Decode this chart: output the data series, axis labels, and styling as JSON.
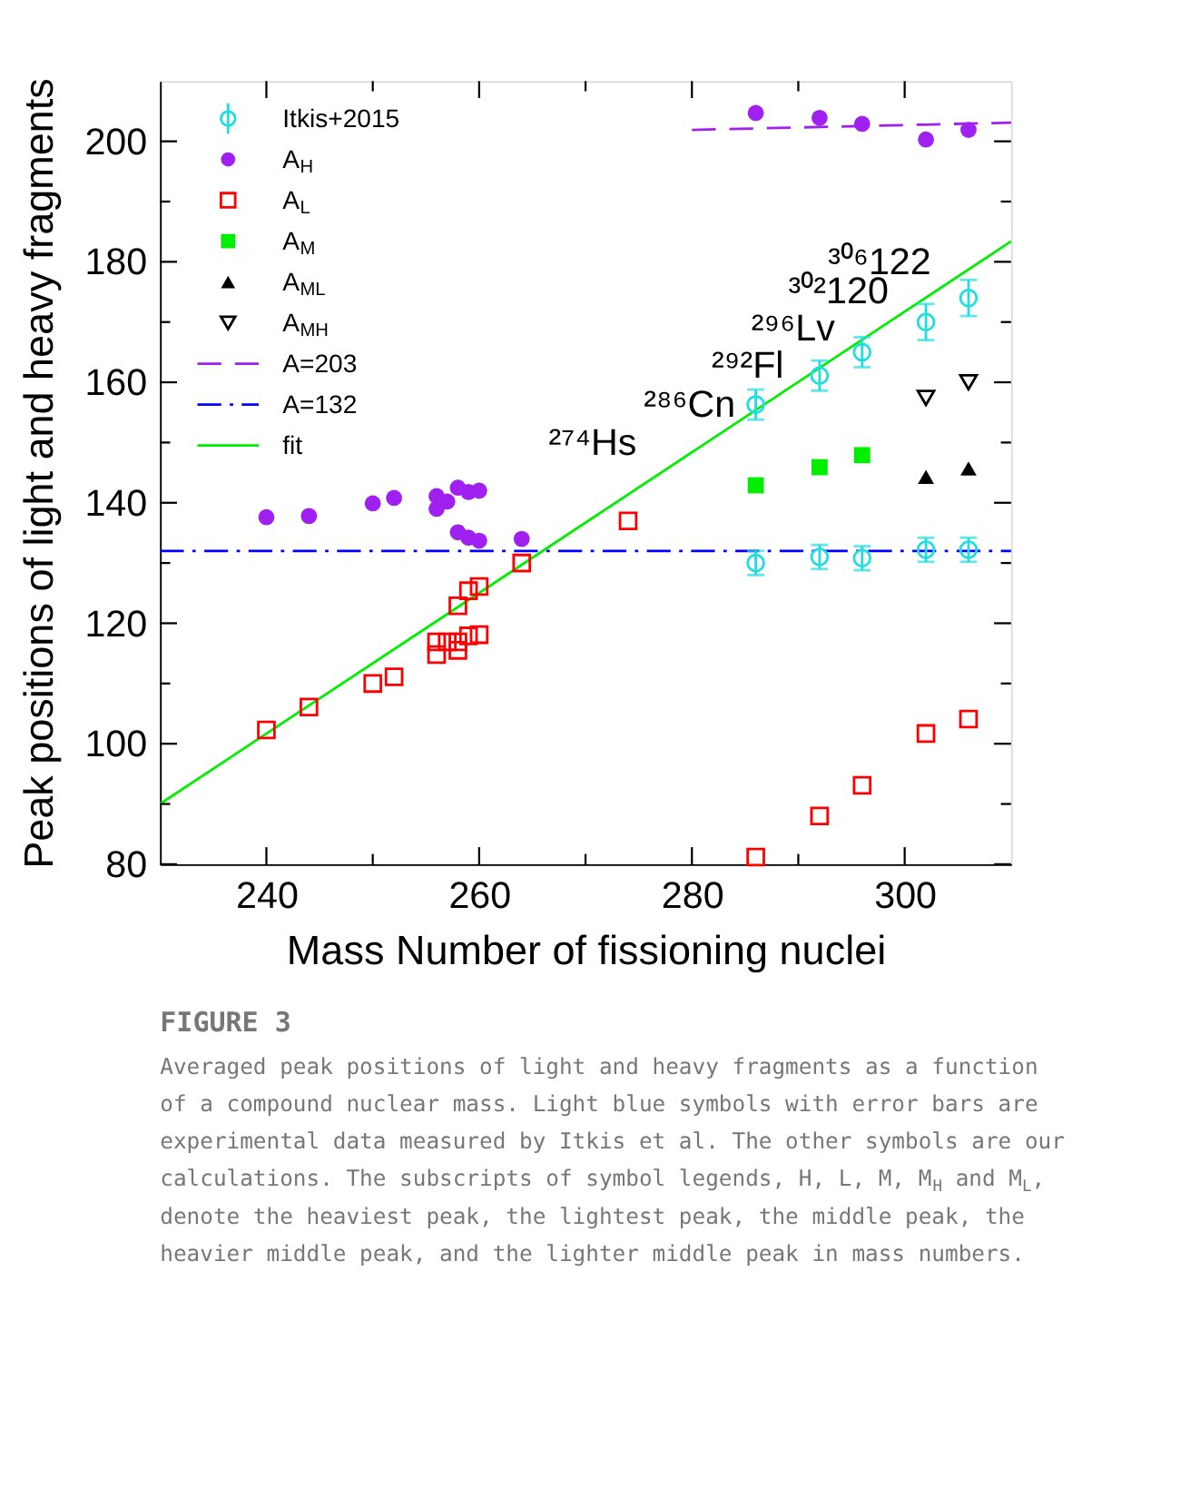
{
  "chart_data": {
    "type": "scatter",
    "xlabel": "Mass Number of fissioning nuclei",
    "ylabel": "Peak positions of light and heavy fragments",
    "xlim": [
      230,
      310
    ],
    "ylim": [
      80,
      210
    ],
    "xticks": [
      240,
      {
        "value": 250,
        "label": null
      },
      260,
      {
        "value": 270,
        "label": null
      },
      280,
      {
        "value": 290,
        "label": null
      },
      300
    ],
    "yticks": [
      80,
      {
        "value": 90,
        "label": null
      },
      100,
      {
        "value": 110,
        "label": null
      },
      120,
      {
        "value": 130,
        "label": null
      },
      140,
      {
        "value": 150,
        "label": null
      },
      160,
      {
        "value": 170,
        "label": null
      },
      180,
      {
        "value": 190,
        "label": null
      },
      200
    ],
    "grid": false,
    "legend": "top left",
    "series": [
      {
        "name": "Itkis+2015",
        "marker": "circle",
        "color": "#22dde0",
        "x": [
          286,
          292,
          296,
          302,
          306,
          286,
          292,
          296,
          302,
          306
        ],
        "values": [
          156.3,
          161.1,
          165.0,
          170.0,
          174.0,
          130.0,
          131.0,
          130.8,
          132.2,
          132.2
        ],
        "errors": [
          2.5,
          2.5,
          2.5,
          3,
          3,
          2,
          2,
          2,
          2,
          2
        ]
      },
      {
        "name": "A$_{H}$",
        "marker": "circle",
        "color": "#a020f0",
        "x": [
          240,
          244,
          250,
          252,
          256,
          256,
          257,
          258,
          259,
          260,
          258,
          259,
          260,
          264,
          286,
          292,
          296,
          302,
          306
        ],
        "values": [
          137.6,
          137.8,
          139.9,
          140.8,
          141.1,
          139.0,
          140.2,
          142.5,
          141.8,
          142.0,
          135.1,
          134.2,
          133.7,
          134.0,
          204.7,
          203.9,
          202.9,
          200.3,
          201.9
        ]
      },
      {
        "name": "A$_{L}$",
        "marker": "square",
        "color": "#ff0000",
        "x": [
          240,
          244,
          250,
          252,
          256,
          256,
          257,
          258,
          258,
          258,
          259,
          259,
          260,
          260,
          264,
          274,
          286,
          292,
          296,
          302,
          306
        ],
        "values": [
          102.3,
          106.1,
          110.0,
          111.1,
          114.8,
          116.9,
          116.9,
          116.9,
          115.5,
          122.9,
          117.9,
          125.4,
          118.1,
          126.1,
          130.0,
          137.0,
          81.2,
          88.0,
          93.1,
          101.7,
          104.1
        ]
      },
      {
        "name": "A$_{M}$",
        "marker": "square",
        "color": "#00ee00",
        "x": [
          286,
          292,
          296
        ],
        "values": [
          142.9,
          145.9,
          147.9
        ]
      },
      {
        "name": "A$_{ML}$",
        "marker": "triangle",
        "color": "#000000",
        "x": [
          302,
          306
        ],
        "values": [
          144.3,
          145.7
        ]
      },
      {
        "name": "A$_{MH}$",
        "marker": "triangle-down",
        "color": "#000000",
        "x": [
          302,
          306
        ],
        "values": [
          157.4,
          160.0
        ]
      },
      {
        "name": "A=203",
        "type": "line",
        "line_style": "dashed",
        "color": "#a020f0",
        "x": [
          280,
          310
        ],
        "values": [
          201.9,
          203.1
        ]
      },
      {
        "name": "A=132",
        "type": "line",
        "line_style": "dashdot",
        "color": "#0000ff",
        "x": [
          230,
          310
        ],
        "values": [
          132.0,
          132.0
        ]
      },
      {
        "name": "fit",
        "type": "line",
        "line_style": "solid",
        "color": "#00ee00",
        "x": [
          230,
          310
        ],
        "values": [
          90.0,
          183.4
        ]
      }
    ],
    "annotations": [
      {
        "text": "²⁷⁴Hs",
        "x": 274,
        "y": 137.0
      },
      {
        "text": "²⁸⁶Cn",
        "x": 286,
        "y": 156.3
      },
      {
        "text": "²⁹²Fl",
        "x": 292,
        "y": 161.1
      },
      {
        "text": "²⁹⁶Lv",
        "x": 296,
        "y": 165.0
      },
      {
        "text": "³⁰²120",
        "x": 302,
        "y": 170.0
      },
      {
        "text": "³⁰⁶122",
        "x": 306,
        "y": 174.0
      },
      "FIGURE 3",
      "Averaged peak positions of light and heavy fragments as a function of a compound nuclear mass. Light blue symbols with error bars are experimental data measured by Itkis et al. The other symbols are our calculations. The subscripts of symbol legends, H, L, M, M$_{H}$ and M$_{L}$, denote the heaviest peak, the lightest peak, the middle peak, the heavier middle peak, and the lighter middle peak in mass numbers."
    ]
  }
}
